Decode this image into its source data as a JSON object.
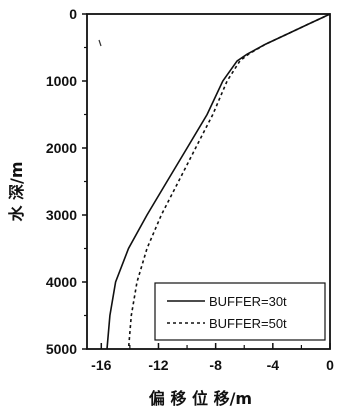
{
  "chart_data": {
    "type": "line",
    "xlabel": "偏 移 位 移/m",
    "ylabel": "水 深/m",
    "xlim": [
      -17,
      0
    ],
    "ylim": [
      0,
      5000
    ],
    "y_inverted": true,
    "x_axis_position": "top",
    "x_tick_labels_position": "bottom",
    "xticks": [
      -16,
      -12,
      -8,
      -4,
      0
    ],
    "yticks": [
      0,
      1000,
      2000,
      3000,
      4000,
      5000
    ],
    "xtick_labels": [
      "-16",
      "-12",
      "-8",
      "-4",
      "0"
    ],
    "ytick_labels": [
      "0",
      "1000",
      "2000",
      "3000",
      "4000",
      "5000"
    ],
    "grid": false,
    "legend_position": "bottom-right",
    "series": [
      {
        "name": "BUFFER=30t",
        "style": "solid",
        "x": [
          0,
          -0.5,
          -1.5,
          -3.0,
          -4.5,
          -5.8,
          -6.5,
          -7.5,
          -8.6,
          -10.0,
          -11.4,
          -12.8,
          -14.1,
          -15.0,
          -15.4,
          -15.6
        ],
        "y": [
          0,
          50,
          150,
          300,
          450,
          600,
          700,
          1000,
          1500,
          2000,
          2500,
          3000,
          3500,
          4000,
          4500,
          5000
        ]
      },
      {
        "name": "BUFFER=50t",
        "style": "dashed",
        "x": [
          0,
          -0.5,
          -1.5,
          -3.0,
          -4.5,
          -5.7,
          -6.3,
          -7.2,
          -8.2,
          -9.4,
          -10.6,
          -11.8,
          -12.8,
          -13.5,
          -13.9,
          -14.1
        ],
        "y": [
          0,
          50,
          150,
          300,
          450,
          600,
          700,
          1000,
          1500,
          2000,
          2500,
          3000,
          3500,
          4000,
          4500,
          5000
        ]
      }
    ]
  }
}
